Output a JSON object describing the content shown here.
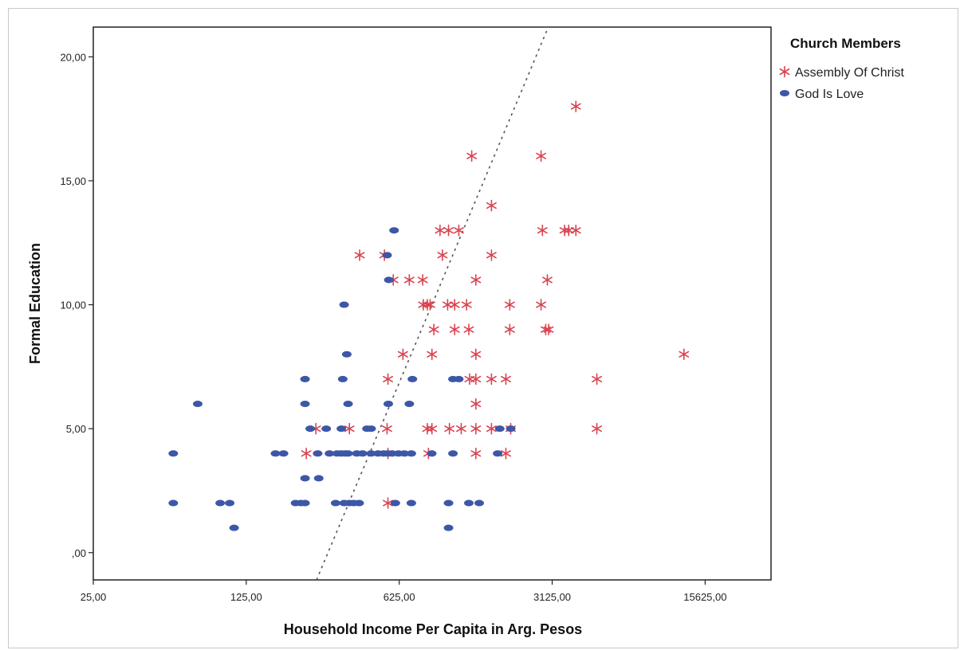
{
  "chart_data": {
    "type": "scatter",
    "title": "",
    "xlabel": "Household Income Per Capita in Arg. Pesos",
    "ylabel": "Formal Education",
    "x_scale": "log",
    "xlim": [
      25,
      31250
    ],
    "ylim": [
      -1.1,
      21.2
    ],
    "x_ticks": [
      25,
      125,
      625,
      3125,
      15625
    ],
    "x_tick_labels": [
      "25,00",
      "125,00",
      "625,00",
      "3125,00",
      "15625,00"
    ],
    "y_ticks": [
      0,
      5,
      10,
      15,
      20
    ],
    "y_tick_labels": [
      ",00",
      "5,00",
      "10,00",
      "15,00",
      "20,00"
    ],
    "grid": false,
    "legend": {
      "title": "Church Members",
      "placement": "right"
    },
    "series": [
      {
        "name": "Assembly Of Christ",
        "marker": "star",
        "color": "#d9434f",
        "points": [
          [
            4010,
            18
          ],
          [
            1340,
            16
          ],
          [
            2780,
            16
          ],
          [
            1650,
            14
          ],
          [
            960,
            13
          ],
          [
            1050,
            13
          ],
          [
            1170,
            13
          ],
          [
            2820,
            13
          ],
          [
            3560,
            13
          ],
          [
            3720,
            13
          ],
          [
            4010,
            13
          ],
          [
            412,
            12
          ],
          [
            535,
            12
          ],
          [
            985,
            12
          ],
          [
            1650,
            12
          ],
          [
            587,
            11
          ],
          [
            695,
            11
          ],
          [
            800,
            11
          ],
          [
            1400,
            11
          ],
          [
            2970,
            11
          ],
          [
            805,
            10
          ],
          [
            840,
            10
          ],
          [
            865,
            10
          ],
          [
            1040,
            10
          ],
          [
            1120,
            10
          ],
          [
            1270,
            10
          ],
          [
            2000,
            10
          ],
          [
            2780,
            10
          ],
          [
            900,
            9
          ],
          [
            1120,
            9
          ],
          [
            1300,
            9
          ],
          [
            2000,
            9
          ],
          [
            2920,
            9
          ],
          [
            3010,
            9
          ],
          [
            650,
            8
          ],
          [
            882,
            8
          ],
          [
            1400,
            8
          ],
          [
            12500,
            8
          ],
          [
            555,
            7
          ],
          [
            1310,
            7
          ],
          [
            1400,
            7
          ],
          [
            1650,
            7
          ],
          [
            1920,
            7
          ],
          [
            5000,
            7
          ],
          [
            1400,
            6
          ],
          [
            260,
            5
          ],
          [
            370,
            5
          ],
          [
            550,
            5
          ],
          [
            840,
            5
          ],
          [
            882,
            5
          ],
          [
            1060,
            5
          ],
          [
            1200,
            5
          ],
          [
            1400,
            5
          ],
          [
            1650,
            5
          ],
          [
            2020,
            5
          ],
          [
            5000,
            5
          ],
          [
            235,
            4
          ],
          [
            555,
            4
          ],
          [
            850,
            4
          ],
          [
            1400,
            4
          ],
          [
            1920,
            4
          ],
          [
            555,
            2
          ]
        ]
      },
      {
        "name": "God Is Love",
        "marker": "ellipse",
        "color": "#3d57a7",
        "points": [
          [
            592,
            13
          ],
          [
            550,
            12
          ],
          [
            560,
            11
          ],
          [
            350,
            10
          ],
          [
            360,
            8
          ],
          [
            232,
            7
          ],
          [
            345,
            7
          ],
          [
            718,
            7
          ],
          [
            1100,
            7
          ],
          [
            1170,
            7
          ],
          [
            75,
            6
          ],
          [
            232,
            6
          ],
          [
            365,
            6
          ],
          [
            557,
            6
          ],
          [
            695,
            6
          ],
          [
            245,
            5
          ],
          [
            290,
            5
          ],
          [
            340,
            5
          ],
          [
            445,
            5
          ],
          [
            465,
            5
          ],
          [
            1800,
            5
          ],
          [
            2020,
            5
          ],
          [
            58,
            4
          ],
          [
            170,
            4
          ],
          [
            185,
            4
          ],
          [
            265,
            4
          ],
          [
            300,
            4
          ],
          [
            325,
            4
          ],
          [
            340,
            4
          ],
          [
            355,
            4
          ],
          [
            365,
            4
          ],
          [
            400,
            4
          ],
          [
            425,
            4
          ],
          [
            465,
            4
          ],
          [
            500,
            4
          ],
          [
            530,
            4
          ],
          [
            555,
            4
          ],
          [
            580,
            4
          ],
          [
            620,
            4
          ],
          [
            660,
            4
          ],
          [
            710,
            4
          ],
          [
            880,
            4
          ],
          [
            1100,
            4
          ],
          [
            1760,
            4
          ],
          [
            232,
            3
          ],
          [
            268,
            3
          ],
          [
            58,
            2
          ],
          [
            95,
            2
          ],
          [
            105,
            2
          ],
          [
            210,
            2
          ],
          [
            222,
            2
          ],
          [
            232,
            2
          ],
          [
            320,
            2
          ],
          [
            350,
            2
          ],
          [
            370,
            2
          ],
          [
            388,
            2
          ],
          [
            410,
            2
          ],
          [
            600,
            2
          ],
          [
            710,
            2
          ],
          [
            1050,
            2
          ],
          [
            1300,
            2
          ],
          [
            1450,
            2
          ],
          [
            110,
            1
          ],
          [
            1050,
            1
          ]
        ]
      }
    ],
    "fit_line": {
      "style": "dotted",
      "color": "#555555",
      "points": [
        [
          262,
          -1.1
        ],
        [
          3000,
          21.2
        ]
      ]
    }
  }
}
